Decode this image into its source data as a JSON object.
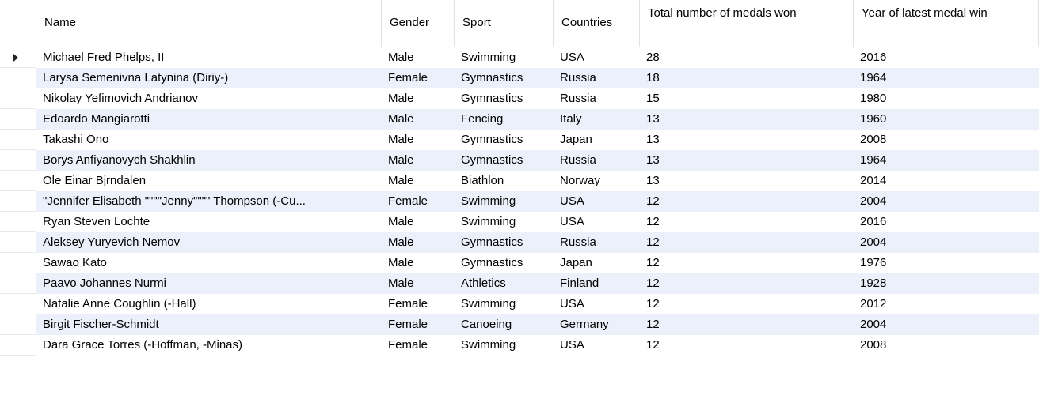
{
  "columns": {
    "name": "Name",
    "gender": "Gender",
    "sport": "Sport",
    "countries": "Countries",
    "total": "Total number of medals won",
    "year": "Year of latest medal win"
  },
  "rows": [
    {
      "name": "Michael Fred Phelps, II",
      "gender": "Male",
      "sport": "Swimming",
      "country": "USA",
      "total": "28",
      "year": "2016"
    },
    {
      "name": "Larysa Semenivna Latynina (Diriy-)",
      "gender": "Female",
      "sport": "Gymnastics",
      "country": "Russia",
      "total": "18",
      "year": "1964"
    },
    {
      "name": "Nikolay Yefimovich Andrianov",
      "gender": "Male",
      "sport": "Gymnastics",
      "country": "Russia",
      "total": "15",
      "year": "1980"
    },
    {
      "name": "Edoardo Mangiarotti",
      "gender": "Male",
      "sport": "Fencing",
      "country": "Italy",
      "total": "13",
      "year": "1960"
    },
    {
      "name": "Takashi Ono",
      "gender": "Male",
      "sport": "Gymnastics",
      "country": "Japan",
      "total": "13",
      "year": "2008"
    },
    {
      "name": "Borys Anfiyanovych Shakhlin",
      "gender": "Male",
      "sport": "Gymnastics",
      "country": "Russia",
      "total": "13",
      "year": "1964"
    },
    {
      "name": "Ole Einar Bjrndalen",
      "gender": "Male",
      "sport": "Biathlon",
      "country": "Norway",
      "total": "13",
      "year": "2014"
    },
    {
      "name": "\"Jennifer Elisabeth \"\"\"\"Jenny\"\"\"\" Thompson (-Cu...",
      "gender": "Female",
      "sport": "Swimming",
      "country": "USA",
      "total": "12",
      "year": "2004"
    },
    {
      "name": "Ryan Steven Lochte",
      "gender": "Male",
      "sport": "Swimming",
      "country": "USA",
      "total": "12",
      "year": "2016"
    },
    {
      "name": "Aleksey Yuryevich Nemov",
      "gender": "Male",
      "sport": "Gymnastics",
      "country": "Russia",
      "total": "12",
      "year": "2004"
    },
    {
      "name": "Sawao Kato",
      "gender": "Male",
      "sport": "Gymnastics",
      "country": "Japan",
      "total": "12",
      "year": "1976"
    },
    {
      "name": "Paavo Johannes Nurmi",
      "gender": "Male",
      "sport": "Athletics",
      "country": "Finland",
      "total": "12",
      "year": "1928"
    },
    {
      "name": "Natalie Anne Coughlin (-Hall)",
      "gender": "Female",
      "sport": "Swimming",
      "country": "USA",
      "total": "12",
      "year": "2012"
    },
    {
      "name": "Birgit Fischer-Schmidt",
      "gender": "Female",
      "sport": "Canoeing",
      "country": "Germany",
      "total": "12",
      "year": "2004"
    },
    {
      "name": "Dara Grace Torres (-Hoffman, -Minas)",
      "gender": "Female",
      "sport": "Swimming",
      "country": "USA",
      "total": "12",
      "year": "2008"
    }
  ],
  "current_row_index": 0,
  "colors": {
    "alt_row": "#ebf0fa",
    "grid_line": "#d0d0d0"
  }
}
